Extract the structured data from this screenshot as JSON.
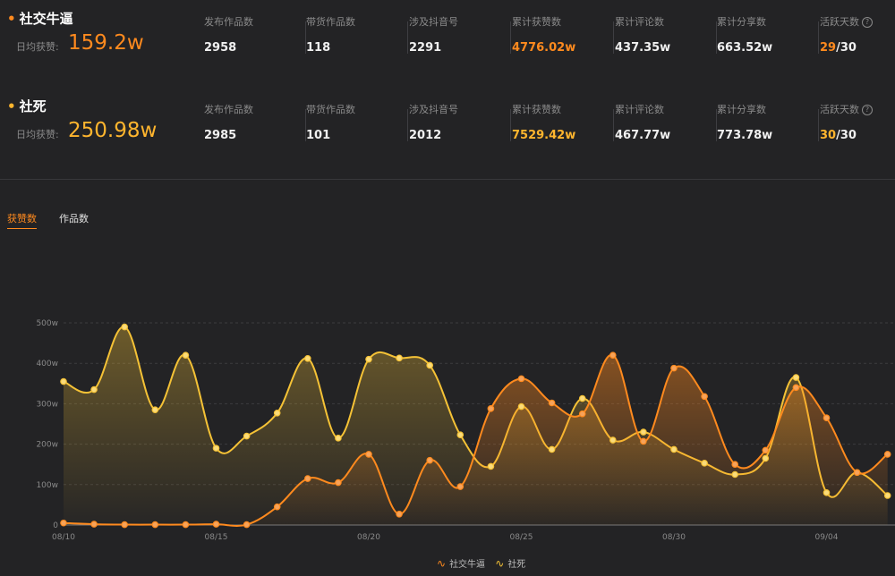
{
  "accounts": [
    {
      "name": "社交牛逼",
      "daily_label": "日均获赞:",
      "daily_value": "159.2w",
      "stats": [
        {
          "label": "发布作品数",
          "value": "2958"
        },
        {
          "label": "带货作品数",
          "value": "118"
        },
        {
          "label": "涉及抖音号",
          "value": "2291"
        },
        {
          "label": "累计获赞数",
          "value": "4776.02w"
        },
        {
          "label": "累计评论数",
          "value": "437.35w"
        },
        {
          "label": "累计分享数",
          "value": "663.52w"
        },
        {
          "label": "活跃天数",
          "value_hi": "29",
          "value_rest": "/30"
        }
      ]
    },
    {
      "name": "社死",
      "daily_label": "日均获赞:",
      "daily_value": "250.98w",
      "stats": [
        {
          "label": "发布作品数",
          "value": "2985"
        },
        {
          "label": "带货作品数",
          "value": "101"
        },
        {
          "label": "涉及抖音号",
          "value": "2012"
        },
        {
          "label": "累计获赞数",
          "value": "7529.42w"
        },
        {
          "label": "累计评论数",
          "value": "467.77w"
        },
        {
          "label": "累计分享数",
          "value": "773.78w"
        },
        {
          "label": "活跃天数",
          "value_hi": "30",
          "value_rest": "/30"
        }
      ]
    }
  ],
  "help_icon": "question-circle-icon",
  "tabs": {
    "likes": "获赞数",
    "works": "作品数"
  },
  "colors": {
    "series1": "#ff8a1e",
    "series2": "#f5c236",
    "background": "#232325"
  },
  "chart_data": {
    "type": "area",
    "x": [
      "08/10",
      "08/11",
      "08/12",
      "08/13",
      "08/14",
      "08/15",
      "08/16",
      "08/17",
      "08/18",
      "08/19",
      "08/20",
      "08/21",
      "08/22",
      "08/23",
      "08/24",
      "08/25",
      "08/26",
      "08/27",
      "08/28",
      "08/29",
      "08/30",
      "08/31",
      "09/01",
      "09/02",
      "09/03",
      "09/04",
      "09/05",
      "09/06"
    ],
    "x_ticks": [
      "08/10",
      "08/15",
      "08/20",
      "08/25",
      "08/30",
      "09/04"
    ],
    "y_ticks": [
      "0",
      "100w",
      "200w",
      "300w",
      "400w",
      "500w"
    ],
    "ylim": [
      0,
      500
    ],
    "smooth": true,
    "grid": "horizontal-dashed",
    "legend_position": "bottom-center",
    "series": [
      {
        "name": "社交牛逼",
        "values": [
          5,
          2,
          1,
          1,
          1,
          2,
          1,
          45,
          115,
          105,
          175,
          27,
          160,
          95,
          288,
          362,
          302,
          275,
          420,
          207,
          388,
          318,
          150,
          185,
          340,
          265,
          130,
          175
        ]
      },
      {
        "name": "社死",
        "values": [
          355,
          335,
          490,
          285,
          420,
          190,
          220,
          277,
          412,
          215,
          410,
          413,
          395,
          223,
          145,
          293,
          187,
          313,
          210,
          230,
          187,
          153,
          125,
          165,
          365,
          80,
          130,
          73
        ]
      }
    ]
  }
}
